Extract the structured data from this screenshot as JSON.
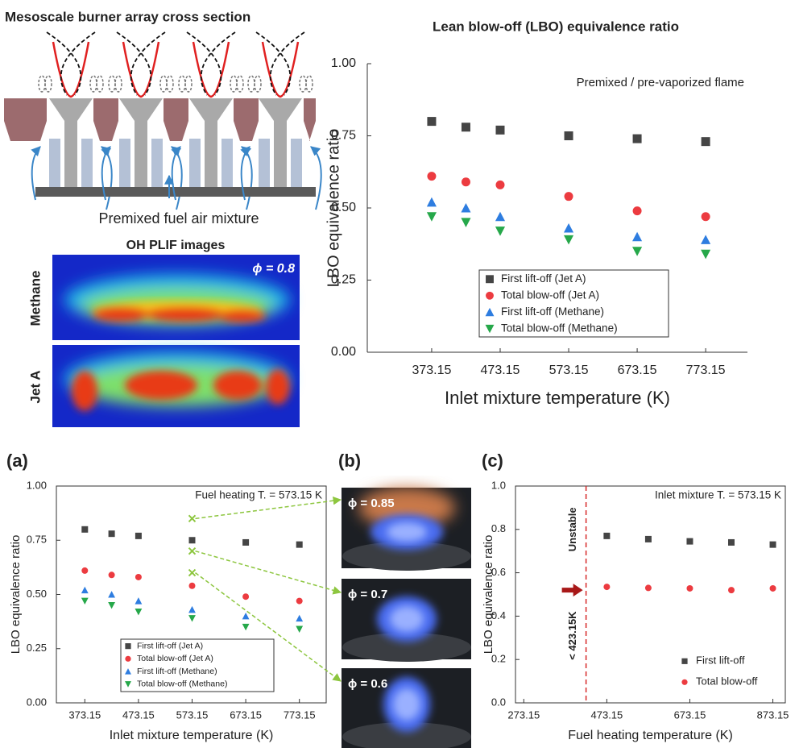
{
  "diagram": {
    "title": "Mesoscale burner array cross section",
    "caption": "Premixed fuel air mixture",
    "images_title": "OH PLIF images",
    "rows": [
      "Methane",
      "Jet A"
    ],
    "phi_label": "ϕ = 0.8"
  },
  "photos": {
    "panel_label": "(b)",
    "labels": [
      "ϕ = 0.85",
      "ϕ = 0.7",
      "ϕ = 0.6"
    ]
  },
  "chart_data": [
    {
      "type": "scatter",
      "title": "Lean blow-off (LBO) equivalence ratio",
      "annotation": "Premixed / pre-vaporized flame",
      "x_label": "Inlet mixture temperature (K)",
      "y_label": "LBO equivalence ratio",
      "x": [
        373.15,
        423.15,
        473.15,
        573.15,
        673.15,
        773.15
      ],
      "series": [
        {
          "name": "First lift-off (Jet A)",
          "color": "#454545",
          "marker": "square",
          "values": [
            0.8,
            0.78,
            0.77,
            0.75,
            0.74,
            0.73
          ]
        },
        {
          "name": "Total blow-off (Jet A)",
          "color": "#ec3b40",
          "marker": "circle",
          "values": [
            0.61,
            0.59,
            0.58,
            0.54,
            0.49,
            0.47
          ]
        },
        {
          "name": "First lift-off (Methane)",
          "color": "#2e7de0",
          "marker": "triangle-up",
          "values": [
            0.52,
            0.5,
            0.47,
            0.43,
            0.4,
            0.39
          ]
        },
        {
          "name": "Total blow-off (Methane)",
          "color": "#26a84a",
          "marker": "triangle-down",
          "values": [
            0.47,
            0.45,
            0.42,
            0.39,
            0.35,
            0.34
          ]
        }
      ],
      "xlim": [
        279.15,
        834.15
      ],
      "xticks": [
        373.15,
        473.15,
        573.15,
        673.15,
        773.15
      ],
      "ylim": [
        0,
        1
      ],
      "yticks": [
        {
          "value": 0,
          "label": "0.00"
        },
        0.25,
        {
          "value": 0.5,
          "label": "0.50"
        },
        0.75,
        {
          "value": 1,
          "label": "1.00"
        }
      ],
      "frame": false,
      "legend_frame": true
    },
    {
      "type": "scatter",
      "panel_label": "(a)",
      "annotation": "Fuel heating T. = 573.15 K",
      "x_label": "Inlet mixture temperature (K)",
      "y_label": "LBO equivalence ratio",
      "x": [
        373.15,
        423.15,
        473.15,
        573.15,
        673.15,
        773.15
      ],
      "series": [
        {
          "name": "First lift-off (Jet A)",
          "color": "#454545",
          "marker": "square",
          "values": [
            0.8,
            0.78,
            0.77,
            0.75,
            0.74,
            0.73
          ]
        },
        {
          "name": "Total blow-off (Jet A)",
          "color": "#ec3b40",
          "marker": "circle",
          "values": [
            0.61,
            0.59,
            0.58,
            0.54,
            0.49,
            0.47
          ]
        },
        {
          "name": "First lift-off (Methane)",
          "color": "#2e7de0",
          "marker": "triangle-up",
          "values": [
            0.52,
            0.5,
            0.47,
            0.43,
            0.4,
            0.39
          ]
        },
        {
          "name": "Total blow-off (Methane)",
          "color": "#26a84a",
          "marker": "triangle-down",
          "values": [
            0.47,
            0.45,
            0.42,
            0.39,
            0.35,
            0.34
          ]
        }
      ],
      "highlight": {
        "x": [
          573.15,
          573.15,
          573.15
        ],
        "values": [
          0.85,
          0.7,
          0.6
        ],
        "color": "#8dc63f"
      },
      "xlim": [
        320.15,
        823.15
      ],
      "xticks": [
        373.15,
        473.15,
        573.15,
        673.15,
        773.15
      ],
      "ylim": [
        0,
        1
      ],
      "yticks": [
        {
          "value": 0,
          "label": "0.00"
        },
        0.25,
        {
          "value": 0.5,
          "label": "0.50"
        },
        0.75,
        {
          "value": 1,
          "label": "1.00"
        }
      ],
      "frame": true,
      "legend_frame": true
    },
    {
      "type": "scatter",
      "panel_label": "(c)",
      "annotation": "Inlet mixture T. = 573.15 K",
      "x_label": "Fuel heating temperature (K)",
      "y_label": "LBO equivalence ratio",
      "x": [
        473.15,
        573.15,
        673.15,
        773.15,
        873.15
      ],
      "series": [
        {
          "name": "First lift-off",
          "color": "#454545",
          "marker": "square",
          "values": [
            0.77,
            0.755,
            0.745,
            0.74,
            0.73
          ]
        },
        {
          "name": "Total blow-off",
          "color": "#ec3b40",
          "marker": "circle",
          "values": [
            0.535,
            0.53,
            0.528,
            0.52,
            0.528
          ]
        }
      ],
      "threshold": {
        "x": 423.15,
        "text": "Unstable",
        "label": "< 423.15K",
        "color": "#d62728"
      },
      "xlim": [
        253.15,
        903.15
      ],
      "xticks": [
        273.15,
        473.15,
        673.15,
        873.15
      ],
      "ylim": [
        0,
        1
      ],
      "yticks": [
        {
          "value": 0,
          "label": "0.0"
        },
        0.2,
        0.4,
        0.6,
        0.8,
        {
          "value": 1,
          "label": "1.0"
        }
      ],
      "frame": true,
      "legend_frame": false
    }
  ]
}
